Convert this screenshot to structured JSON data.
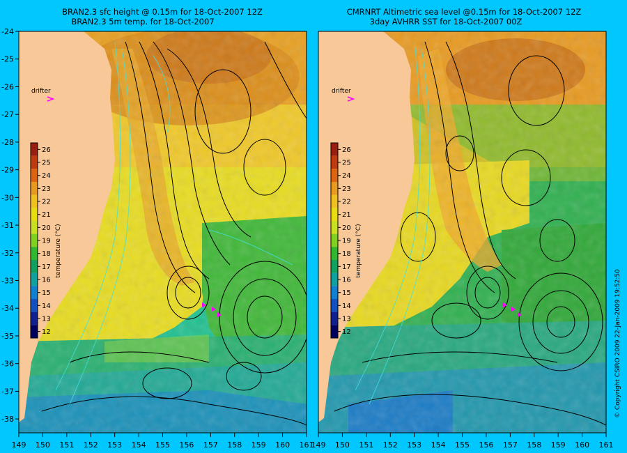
{
  "left_panel": {
    "title_line1": "BRAN2.3 sfc height @ 0.15m for 18-Oct-2007 12Z",
    "title_line2": "BRAN2.3 5m temp. for 18-Oct-2007",
    "drifter_label": "drifter"
  },
  "right_panel": {
    "title_line1": "CMRNRT Altimetric sea level  @0.15m  for 18-Oct-2007 12Z",
    "title_line2": "3day AVHRR SST for 18-Oct-2007 00Z",
    "drifter_label": "drifter"
  },
  "map_extent": {
    "lon_min": 149,
    "lon_max": 161,
    "lat_min": -38.5,
    "lat_max": -24
  },
  "lon_ticks": [
    "149",
    "150",
    "151",
    "152",
    "153",
    "154",
    "155",
    "156",
    "157",
    "158",
    "159",
    "160",
    "161"
  ],
  "lat_ticks": [
    "-24",
    "-25",
    "-26",
    "-27",
    "-28",
    "-29",
    "-30",
    "-31",
    "-32",
    "-33",
    "-34",
    "-35",
    "-36",
    "-37",
    "-38"
  ],
  "colorbar": {
    "label": "temperature (°C)",
    "values": [
      "26",
      "25",
      "24",
      "23",
      "22",
      "21",
      "20",
      "19",
      "18",
      "17",
      "16",
      "15",
      "14",
      "13",
      "12"
    ],
    "colors": [
      "#9a1e10",
      "#c03a10",
      "#dd6410",
      "#e89a20",
      "#f0c020",
      "#e8dc10",
      "#c8e020",
      "#80d020",
      "#30b830",
      "#10a060",
      "#10a0a0",
      "#1080d0",
      "#1050c0",
      "#102090",
      "#000060"
    ]
  },
  "copyright": "© Copyright CSIRO 2009   22-Jan-2009 19:52:50",
  "colors": {
    "background": "#00c8ff",
    "land": "#f8c898",
    "drifter": "#ff00ff",
    "contour": "#000000",
    "bathy_contour": "#40e0e0"
  }
}
